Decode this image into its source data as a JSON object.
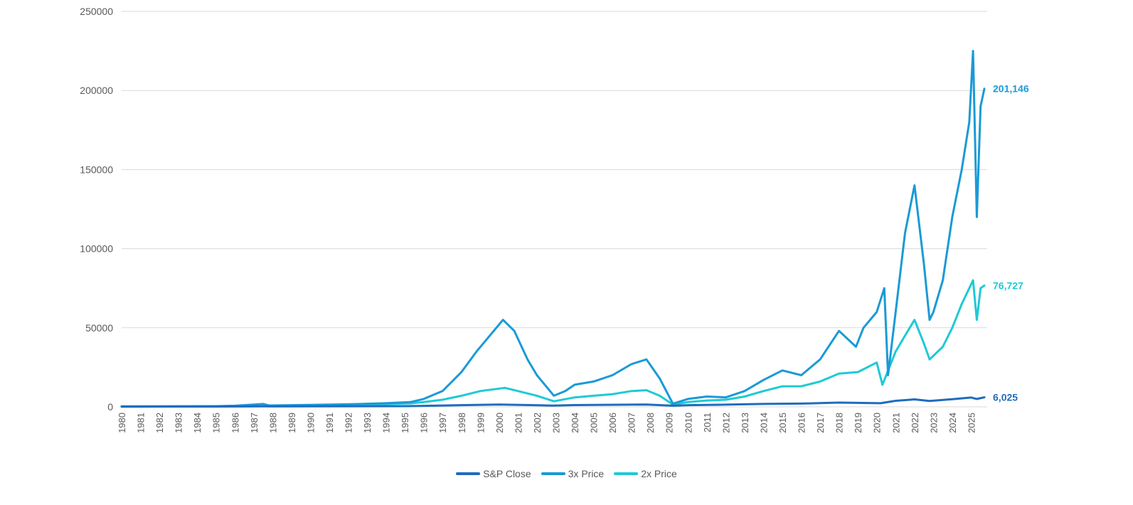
{
  "chart_data": {
    "type": "line",
    "title": "",
    "xlabel": "",
    "ylabel": "",
    "ylim": [
      0,
      250000
    ],
    "yticks": [
      0,
      50000,
      100000,
      150000,
      200000,
      250000
    ],
    "ytick_labels": [
      "0",
      "50000",
      "100000",
      "150000",
      "200000",
      "250000"
    ],
    "xlim": [
      1980.0,
      2025.85
    ],
    "xticks": [
      "1980",
      "1981",
      "1982",
      "1983",
      "1984",
      "1985",
      "1986",
      "1987",
      "1988",
      "1989",
      "1990",
      "1991",
      "1992",
      "1993",
      "1994",
      "1995",
      "1996",
      "1997",
      "1998",
      "1999",
      "2000",
      "2001",
      "2002",
      "2003",
      "2004",
      "2005",
      "2006",
      "2007",
      "2008",
      "2009",
      "2010",
      "2011",
      "2012",
      "2013",
      "2014",
      "2015",
      "2016",
      "2017",
      "2018",
      "2019",
      "2020",
      "2021",
      "2022",
      "2023",
      "2024",
      "2025"
    ],
    "grid": "horizontal",
    "legend_position": "bottom",
    "series": [
      {
        "name": "S&P Close",
        "color": "#1f6cbf",
        "end_label": "6,025",
        "points": [
          [
            1980,
            108
          ],
          [
            1985,
            180
          ],
          [
            1987.6,
            320
          ],
          [
            1988,
            260
          ],
          [
            1990,
            340
          ],
          [
            1995,
            460
          ],
          [
            1996,
            620
          ],
          [
            1998,
            1100
          ],
          [
            2000,
            1500
          ],
          [
            2002.8,
            800
          ],
          [
            2004,
            1120
          ],
          [
            2007.8,
            1500
          ],
          [
            2009.2,
            700
          ],
          [
            2010,
            1100
          ],
          [
            2012,
            1400
          ],
          [
            2014,
            1850
          ],
          [
            2016,
            2050
          ],
          [
            2018,
            2700
          ],
          [
            2020.2,
            2300
          ],
          [
            2021,
            3800
          ],
          [
            2022,
            4700
          ],
          [
            2022.8,
            3700
          ],
          [
            2024,
            4800
          ],
          [
            2025,
            5900
          ],
          [
            2025.3,
            5000
          ],
          [
            2025.7,
            6025
          ]
        ]
      },
      {
        "name": "3x Price",
        "color": "#1a9ad6",
        "end_label": "201,146",
        "points": [
          [
            1980,
            300
          ],
          [
            1985,
            450
          ],
          [
            1986,
            700
          ],
          [
            1987.5,
            1800
          ],
          [
            1987.8,
            900
          ],
          [
            1990,
            1200
          ],
          [
            1992,
            1600
          ],
          [
            1994,
            2300
          ],
          [
            1995.3,
            3000
          ],
          [
            1996,
            5000
          ],
          [
            1997,
            10000
          ],
          [
            1998,
            22000
          ],
          [
            1998.8,
            35000
          ],
          [
            1999.5,
            45000
          ],
          [
            2000.2,
            55000
          ],
          [
            2000.8,
            48000
          ],
          [
            2001.5,
            30000
          ],
          [
            2002,
            20000
          ],
          [
            2002.9,
            7000
          ],
          [
            2003.5,
            10000
          ],
          [
            2004,
            14000
          ],
          [
            2005,
            16000
          ],
          [
            2006,
            20000
          ],
          [
            2007,
            27000
          ],
          [
            2007.8,
            30000
          ],
          [
            2008.5,
            18000
          ],
          [
            2009.2,
            2000
          ],
          [
            2010,
            5000
          ],
          [
            2011,
            6500
          ],
          [
            2012,
            6000
          ],
          [
            2013,
            10000
          ],
          [
            2014,
            17000
          ],
          [
            2015,
            23000
          ],
          [
            2016,
            20000
          ],
          [
            2017,
            30000
          ],
          [
            2018,
            48000
          ],
          [
            2018.9,
            38000
          ],
          [
            2019.3,
            50000
          ],
          [
            2020,
            60000
          ],
          [
            2020.4,
            75000
          ],
          [
            2020.6,
            20000
          ],
          [
            2021,
            60000
          ],
          [
            2021.5,
            110000
          ],
          [
            2022,
            140000
          ],
          [
            2022.5,
            90000
          ],
          [
            2022.8,
            55000
          ],
          [
            2023,
            60000
          ],
          [
            2023.5,
            80000
          ],
          [
            2024,
            120000
          ],
          [
            2024.5,
            150000
          ],
          [
            2024.9,
            180000
          ],
          [
            2025.1,
            225000
          ],
          [
            2025.3,
            120000
          ],
          [
            2025.5,
            190000
          ],
          [
            2025.7,
            201146
          ]
        ]
      },
      {
        "name": "2x Price",
        "color": "#1ecad4",
        "end_label": "76,727",
        "points": [
          [
            1980,
            200
          ],
          [
            1985,
            300
          ],
          [
            1987.6,
            900
          ],
          [
            1988,
            600
          ],
          [
            1990,
            800
          ],
          [
            1992,
            1200
          ],
          [
            1994,
            1800
          ],
          [
            1995.3,
            2200
          ],
          [
            1996,
            3000
          ],
          [
            1997,
            4500
          ],
          [
            1998,
            7000
          ],
          [
            1999,
            10000
          ],
          [
            2000.3,
            12000
          ],
          [
            2001,
            10000
          ],
          [
            2002,
            7000
          ],
          [
            2002.9,
            3500
          ],
          [
            2004,
            6000
          ],
          [
            2005,
            7000
          ],
          [
            2006,
            8000
          ],
          [
            2007,
            10000
          ],
          [
            2007.8,
            10500
          ],
          [
            2008.5,
            7000
          ],
          [
            2009.2,
            1500
          ],
          [
            2010,
            3000
          ],
          [
            2011,
            4000
          ],
          [
            2012,
            4500
          ],
          [
            2013,
            6500
          ],
          [
            2014,
            10000
          ],
          [
            2015,
            13000
          ],
          [
            2016,
            13000
          ],
          [
            2017,
            16000
          ],
          [
            2018,
            21000
          ],
          [
            2019,
            22000
          ],
          [
            2020,
            28000
          ],
          [
            2020.3,
            14000
          ],
          [
            2021,
            35000
          ],
          [
            2021.5,
            45000
          ],
          [
            2022,
            55000
          ],
          [
            2022.5,
            40000
          ],
          [
            2022.8,
            30000
          ],
          [
            2023.5,
            38000
          ],
          [
            2024,
            50000
          ],
          [
            2024.5,
            65000
          ],
          [
            2025.1,
            80000
          ],
          [
            2025.3,
            55000
          ],
          [
            2025.5,
            75000
          ],
          [
            2025.7,
            76727
          ]
        ]
      }
    ]
  }
}
